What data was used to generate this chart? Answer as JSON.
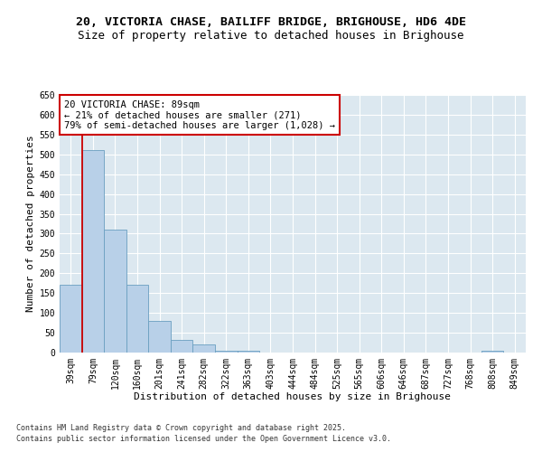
{
  "title_line1": "20, VICTORIA CHASE, BAILIFF BRIDGE, BRIGHOUSE, HD6 4DE",
  "title_line2": "Size of property relative to detached houses in Brighouse",
  "xlabel": "Distribution of detached houses by size in Brighouse",
  "ylabel": "Number of detached properties",
  "bins": [
    "39sqm",
    "79sqm",
    "120sqm",
    "160sqm",
    "201sqm",
    "241sqm",
    "282sqm",
    "322sqm",
    "363sqm",
    "403sqm",
    "444sqm",
    "484sqm",
    "525sqm",
    "565sqm",
    "606sqm",
    "646sqm",
    "687sqm",
    "727sqm",
    "768sqm",
    "808sqm",
    "849sqm"
  ],
  "values": [
    170,
    510,
    310,
    172,
    80,
    33,
    20,
    5,
    5,
    0,
    0,
    0,
    0,
    0,
    0,
    0,
    0,
    0,
    0,
    5,
    0
  ],
  "bar_color": "#b8d0e8",
  "bar_edge_color": "#6a9fc0",
  "property_bin_index": 1,
  "vline_color": "#cc0000",
  "annotation_text": "20 VICTORIA CHASE: 89sqm\n← 21% of detached houses are smaller (271)\n79% of semi-detached houses are larger (1,028) →",
  "annotation_box_color": "#ffffff",
  "annotation_box_edge": "#cc0000",
  "ylim": [
    0,
    650
  ],
  "yticks": [
    0,
    50,
    100,
    150,
    200,
    250,
    300,
    350,
    400,
    450,
    500,
    550,
    600,
    650
  ],
  "bg_color": "#dce8f0",
  "grid_color": "#ffffff",
  "fig_bg_color": "#ffffff",
  "footer_line1": "Contains HM Land Registry data © Crown copyright and database right 2025.",
  "footer_line2": "Contains public sector information licensed under the Open Government Licence v3.0.",
  "title_fontsize": 9.5,
  "subtitle_fontsize": 9,
  "axis_label_fontsize": 8,
  "tick_fontsize": 7,
  "annotation_fontsize": 7.5,
  "footer_fontsize": 6
}
